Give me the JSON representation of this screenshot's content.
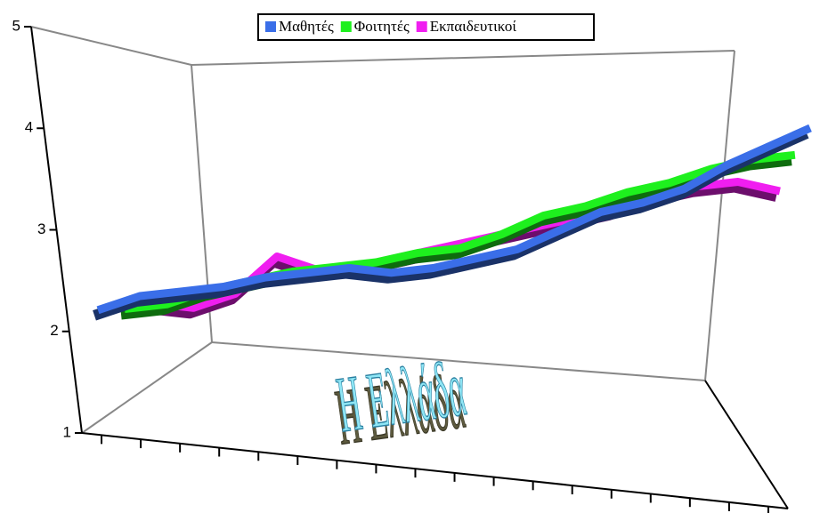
{
  "chart_data": {
    "type": "line",
    "annotation": "Η Ελλάδα",
    "categories": [
      null,
      null,
      null,
      null,
      null,
      null,
      null,
      null,
      null,
      null,
      null,
      null,
      null,
      null,
      null,
      null,
      null,
      null
    ],
    "series": [
      {
        "name": "Μαθητές",
        "color": "#3a6ee8",
        "values": [
          2.65,
          2.8,
          2.85,
          2.9,
          3.0,
          3.05,
          3.1,
          3.05,
          3.1,
          3.2,
          3.3,
          3.5,
          3.7,
          3.8,
          3.95,
          4.2,
          4.4,
          4.6
        ]
      },
      {
        "name": "Φοιτητές",
        "color": "#1ef01e",
        "values": [
          2.7,
          2.75,
          2.9,
          3.0,
          3.1,
          3.15,
          3.2,
          3.3,
          3.35,
          3.5,
          3.7,
          3.8,
          3.95,
          4.05,
          4.2,
          4.3,
          4.35,
          null
        ]
      },
      {
        "name": "Εκπαιδευτικοί",
        "color": "#f01ef0",
        "values": [
          2.8,
          2.75,
          2.9,
          3.3,
          3.15,
          3.2,
          3.3,
          3.4,
          3.5,
          3.6,
          3.7,
          3.8,
          3.95,
          4.05,
          4.1,
          4.0,
          null,
          null
        ]
      }
    ],
    "ylim": [
      1,
      5
    ],
    "yticks": [
      1,
      2,
      3,
      4,
      5
    ],
    "legend": "top"
  }
}
